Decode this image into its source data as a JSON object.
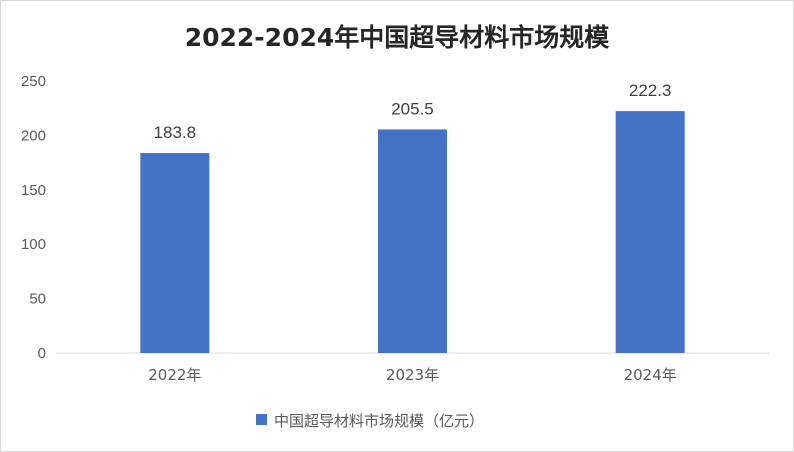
{
  "chart_data": {
    "type": "bar",
    "title": "2022-2024年中国超导材料市场规模",
    "categories": [
      "2022年",
      "2023年",
      "2024年"
    ],
    "series": [
      {
        "name": "中国超导材料市场规模（亿元）",
        "values": [
          183.8,
          205.5,
          222.3
        ]
      }
    ],
    "data_labels": [
      "183.8",
      "205.5",
      "222.3"
    ],
    "ylim": [
      0,
      250
    ],
    "y_ticks": [
      0,
      50,
      100,
      150,
      200,
      250
    ],
    "y_tick_labels": [
      "0",
      "50",
      "100",
      "150",
      "200",
      "250"
    ],
    "grid": false,
    "legend": "bottom",
    "bar_color": "#4472c4",
    "axis_color": "#d9d9d9"
  }
}
